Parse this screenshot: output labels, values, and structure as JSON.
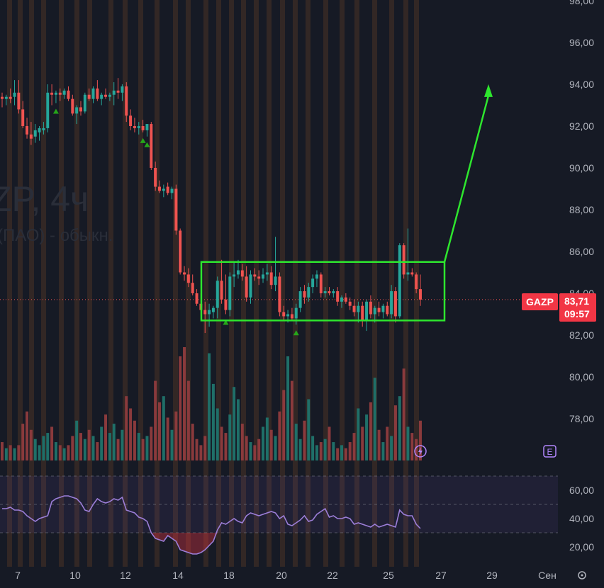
{
  "watermark": {
    "symbol_line": "ZP, 4ч",
    "name_line": "(ПАО) - обыкн."
  },
  "price_tag": {
    "symbol": "GAZP",
    "price": "83,71",
    "countdown": "09:57"
  },
  "icons": {
    "flash": "flash-icon",
    "earnings": "E",
    "settings": "gear-icon"
  },
  "colors": {
    "background": "#161a25",
    "up": "#26a69a",
    "down": "#ef5350",
    "session_band": "#4a3326",
    "annotation": "#2ee62e",
    "rsi_line": "#9c7ed8",
    "price_tag": "#f23645"
  },
  "price_axis": {
    "labels": [
      "98,00",
      "96,00",
      "94,00",
      "92,00",
      "90,00",
      "88,00",
      "86,00",
      "84,00",
      "82,00",
      "80,00",
      "78,00"
    ],
    "values": [
      98,
      96,
      94,
      92,
      90,
      88,
      86,
      84,
      82,
      80,
      78
    ]
  },
  "rsi_axis": {
    "labels": [
      "60,00",
      "40,00",
      "20,00"
    ],
    "values": [
      60,
      40,
      20
    ],
    "levels": [
      70,
      50,
      30
    ]
  },
  "time_axis": {
    "labels": [
      "7",
      "10",
      "12",
      "14",
      "18",
      "20",
      "22",
      "25",
      "27",
      "29",
      "Сен"
    ]
  },
  "chart_data": {
    "type": "candlestick",
    "symbol": "GAZP",
    "timeframe": "4ч",
    "ylim": [
      76.6,
      98.0
    ],
    "candles": [
      {
        "o": 93.4,
        "h": 93.6,
        "l": 92.9,
        "c": 93.3
      },
      {
        "o": 93.3,
        "h": 93.5,
        "l": 93.0,
        "c": 93.4
      },
      {
        "o": 93.4,
        "h": 93.8,
        "l": 93.1,
        "c": 93.3
      },
      {
        "o": 93.4,
        "h": 94.2,
        "l": 93.0,
        "c": 93.6
      },
      {
        "o": 93.6,
        "h": 94.2,
        "l": 92.6,
        "c": 92.8
      },
      {
        "o": 92.8,
        "h": 93.2,
        "l": 91.9,
        "c": 92.0
      },
      {
        "o": 92.0,
        "h": 92.4,
        "l": 91.4,
        "c": 91.6
      },
      {
        "o": 91.6,
        "h": 92.2,
        "l": 91.1,
        "c": 91.4
      },
      {
        "o": 91.5,
        "h": 92.1,
        "l": 91.2,
        "c": 91.8
      },
      {
        "o": 91.7,
        "h": 92.0,
        "l": 91.3,
        "c": 91.9
      },
      {
        "o": 91.8,
        "h": 92.2,
        "l": 91.6,
        "c": 91.9
      },
      {
        "o": 91.9,
        "h": 94.0,
        "l": 91.7,
        "c": 93.6
      },
      {
        "o": 93.6,
        "h": 94.0,
        "l": 93.0,
        "c": 93.5
      },
      {
        "o": 93.5,
        "h": 93.7,
        "l": 93.1,
        "c": 93.6
      },
      {
        "o": 93.6,
        "h": 93.8,
        "l": 93.2,
        "c": 93.5
      },
      {
        "o": 93.5,
        "h": 93.8,
        "l": 93.3,
        "c": 93.7
      },
      {
        "o": 93.7,
        "h": 93.9,
        "l": 93.2,
        "c": 93.3
      },
      {
        "o": 93.3,
        "h": 93.5,
        "l": 92.5,
        "c": 92.6
      },
      {
        "o": 92.6,
        "h": 93.0,
        "l": 92.1,
        "c": 92.9
      },
      {
        "o": 92.9,
        "h": 93.2,
        "l": 92.5,
        "c": 92.7
      },
      {
        "o": 92.7,
        "h": 93.6,
        "l": 92.6,
        "c": 93.5
      },
      {
        "o": 93.5,
        "h": 93.8,
        "l": 93.2,
        "c": 93.3
      },
      {
        "o": 93.3,
        "h": 93.9,
        "l": 93.1,
        "c": 93.8
      },
      {
        "o": 93.8,
        "h": 94.2,
        "l": 93.2,
        "c": 93.3
      },
      {
        "o": 93.3,
        "h": 93.6,
        "l": 93.0,
        "c": 93.5
      },
      {
        "o": 93.5,
        "h": 93.8,
        "l": 93.3,
        "c": 93.4
      },
      {
        "o": 93.4,
        "h": 93.6,
        "l": 93.2,
        "c": 93.5
      },
      {
        "o": 93.5,
        "h": 94.1,
        "l": 93.0,
        "c": 93.7
      },
      {
        "o": 93.7,
        "h": 94.3,
        "l": 93.3,
        "c": 93.6
      },
      {
        "o": 93.6,
        "h": 94.0,
        "l": 93.2,
        "c": 93.9
      },
      {
        "o": 93.9,
        "h": 94.1,
        "l": 92.2,
        "c": 92.5
      },
      {
        "o": 92.5,
        "h": 92.8,
        "l": 91.8,
        "c": 92.0
      },
      {
        "o": 92.0,
        "h": 92.4,
        "l": 91.7,
        "c": 91.9
      },
      {
        "o": 91.9,
        "h": 92.2,
        "l": 91.6,
        "c": 92.0
      },
      {
        "o": 92.0,
        "h": 92.3,
        "l": 91.7,
        "c": 91.8
      },
      {
        "o": 91.8,
        "h": 92.1,
        "l": 91.5,
        "c": 92.1
      },
      {
        "o": 92.1,
        "h": 92.2,
        "l": 89.9,
        "c": 90.0
      },
      {
        "o": 90.0,
        "h": 90.3,
        "l": 88.9,
        "c": 89.1
      },
      {
        "o": 89.1,
        "h": 89.4,
        "l": 88.8,
        "c": 88.9
      },
      {
        "o": 88.9,
        "h": 89.2,
        "l": 88.6,
        "c": 89.0
      },
      {
        "o": 89.1,
        "h": 89.3,
        "l": 88.7,
        "c": 88.8
      },
      {
        "o": 88.8,
        "h": 89.1,
        "l": 88.5,
        "c": 89.0
      },
      {
        "o": 89.0,
        "h": 89.2,
        "l": 86.8,
        "c": 87.0
      },
      {
        "o": 87.0,
        "h": 87.1,
        "l": 84.9,
        "c": 85.0
      },
      {
        "o": 85.0,
        "h": 85.3,
        "l": 84.6,
        "c": 84.9
      },
      {
        "o": 84.9,
        "h": 85.2,
        "l": 84.3,
        "c": 84.5
      },
      {
        "o": 84.5,
        "h": 84.9,
        "l": 83.9,
        "c": 84.0
      },
      {
        "o": 84.0,
        "h": 84.2,
        "l": 83.4,
        "c": 83.5
      },
      {
        "o": 83.5,
        "h": 84.0,
        "l": 82.9,
        "c": 83.2
      },
      {
        "o": 83.2,
        "h": 83.6,
        "l": 82.1,
        "c": 83.0
      },
      {
        "o": 83.0,
        "h": 83.5,
        "l": 82.4,
        "c": 83.2
      },
      {
        "o": 83.1,
        "h": 83.4,
        "l": 82.8,
        "c": 83.3
      },
      {
        "o": 83.3,
        "h": 84.8,
        "l": 82.8,
        "c": 84.6
      },
      {
        "o": 84.6,
        "h": 85.6,
        "l": 83.5,
        "c": 83.7
      },
      {
        "o": 83.7,
        "h": 84.9,
        "l": 83.0,
        "c": 83.2
      },
      {
        "o": 83.2,
        "h": 85.0,
        "l": 82.9,
        "c": 84.8
      },
      {
        "o": 84.8,
        "h": 85.5,
        "l": 84.3,
        "c": 84.9
      },
      {
        "o": 84.9,
        "h": 85.6,
        "l": 84.7,
        "c": 85.1
      },
      {
        "o": 85.1,
        "h": 85.4,
        "l": 84.6,
        "c": 84.8
      },
      {
        "o": 84.8,
        "h": 85.3,
        "l": 83.6,
        "c": 83.8
      },
      {
        "o": 83.8,
        "h": 85.1,
        "l": 83.5,
        "c": 84.9
      },
      {
        "o": 84.9,
        "h": 85.2,
        "l": 84.6,
        "c": 84.8
      },
      {
        "o": 84.8,
        "h": 85.1,
        "l": 84.4,
        "c": 84.7
      },
      {
        "o": 84.7,
        "h": 85.2,
        "l": 84.5,
        "c": 84.9
      },
      {
        "o": 84.9,
        "h": 85.4,
        "l": 84.6,
        "c": 85.0
      },
      {
        "o": 85.0,
        "h": 85.3,
        "l": 84.2,
        "c": 84.4
      },
      {
        "o": 84.4,
        "h": 86.7,
        "l": 84.1,
        "c": 84.8
      },
      {
        "o": 84.8,
        "h": 85.0,
        "l": 82.9,
        "c": 83.1
      },
      {
        "o": 83.1,
        "h": 83.4,
        "l": 82.7,
        "c": 82.9
      },
      {
        "o": 82.9,
        "h": 83.2,
        "l": 82.6,
        "c": 83.0
      },
      {
        "o": 83.0,
        "h": 83.3,
        "l": 82.7,
        "c": 82.8
      },
      {
        "o": 82.8,
        "h": 83.5,
        "l": 82.5,
        "c": 83.3
      },
      {
        "o": 83.3,
        "h": 84.3,
        "l": 83.1,
        "c": 84.1
      },
      {
        "o": 84.1,
        "h": 84.4,
        "l": 83.5,
        "c": 83.8
      },
      {
        "o": 83.8,
        "h": 84.5,
        "l": 83.6,
        "c": 84.3
      },
      {
        "o": 84.3,
        "h": 84.9,
        "l": 84.0,
        "c": 84.7
      },
      {
        "o": 84.7,
        "h": 85.1,
        "l": 84.3,
        "c": 84.9
      },
      {
        "o": 84.9,
        "h": 85.0,
        "l": 83.8,
        "c": 84.0
      },
      {
        "o": 84.0,
        "h": 84.3,
        "l": 83.8,
        "c": 84.1
      },
      {
        "o": 84.1,
        "h": 84.3,
        "l": 83.9,
        "c": 84.0
      },
      {
        "o": 84.0,
        "h": 84.2,
        "l": 83.8,
        "c": 84.1
      },
      {
        "o": 84.1,
        "h": 84.3,
        "l": 83.4,
        "c": 83.6
      },
      {
        "o": 83.6,
        "h": 83.9,
        "l": 83.3,
        "c": 83.8
      },
      {
        "o": 83.8,
        "h": 84.0,
        "l": 83.5,
        "c": 83.6
      },
      {
        "o": 83.6,
        "h": 83.8,
        "l": 83.2,
        "c": 83.4
      },
      {
        "o": 83.4,
        "h": 83.7,
        "l": 82.9,
        "c": 83.1
      },
      {
        "o": 83.1,
        "h": 83.6,
        "l": 82.6,
        "c": 83.4
      },
      {
        "o": 83.4,
        "h": 83.6,
        "l": 82.4,
        "c": 82.7
      },
      {
        "o": 82.7,
        "h": 83.7,
        "l": 82.2,
        "c": 83.6
      },
      {
        "o": 83.6,
        "h": 83.9,
        "l": 82.8,
        "c": 83.0
      },
      {
        "o": 83.0,
        "h": 83.4,
        "l": 82.6,
        "c": 83.3
      },
      {
        "o": 83.3,
        "h": 83.6,
        "l": 82.9,
        "c": 83.1
      },
      {
        "o": 83.1,
        "h": 83.5,
        "l": 82.8,
        "c": 83.4
      },
      {
        "o": 83.4,
        "h": 83.6,
        "l": 82.9,
        "c": 83.0
      },
      {
        "o": 83.0,
        "h": 84.4,
        "l": 82.8,
        "c": 84.1
      },
      {
        "o": 84.1,
        "h": 84.3,
        "l": 82.6,
        "c": 82.9
      },
      {
        "o": 82.9,
        "h": 86.4,
        "l": 82.8,
        "c": 86.3
      },
      {
        "o": 86.3,
        "h": 86.4,
        "l": 84.7,
        "c": 84.9
      },
      {
        "o": 84.9,
        "h": 87.1,
        "l": 84.6,
        "c": 85.0
      },
      {
        "o": 85.0,
        "h": 85.2,
        "l": 84.8,
        "c": 84.9
      },
      {
        "o": 84.9,
        "h": 85.0,
        "l": 84.0,
        "c": 84.2
      },
      {
        "o": 84.2,
        "h": 84.9,
        "l": 83.4,
        "c": 83.7
      }
    ],
    "volume": [
      6,
      4,
      5,
      4,
      5,
      12,
      16,
      10,
      7,
      5,
      8,
      9,
      11,
      6,
      5,
      4,
      5,
      8,
      13,
      9,
      7,
      10,
      8,
      6,
      11,
      15,
      9,
      12,
      7,
      10,
      21,
      17,
      13,
      9,
      7,
      8,
      11,
      26,
      19,
      21,
      14,
      10,
      16,
      34,
      37,
      26,
      12,
      7,
      5,
      8,
      35,
      25,
      17,
      11,
      9,
      15,
      24,
      20,
      12,
      8,
      6,
      5,
      7,
      11,
      14,
      10,
      8,
      16,
      23,
      34,
      26,
      12,
      7,
      13,
      20,
      8,
      5,
      6,
      7,
      11,
      6,
      4,
      5,
      4,
      6,
      9,
      17,
      11,
      15,
      19,
      27,
      10,
      6,
      11,
      8,
      18,
      21,
      30,
      11,
      9,
      7,
      13
    ],
    "buy_markers": [
      13,
      34,
      35,
      54,
      71
    ],
    "rsi": [
      47,
      47,
      48,
      46,
      46,
      45,
      42,
      40,
      38,
      40,
      41,
      42,
      52,
      54,
      55,
      56,
      56,
      55,
      54,
      51,
      46,
      45,
      50,
      54,
      52,
      51,
      52,
      54,
      53,
      55,
      46,
      45,
      44,
      41,
      40,
      38,
      30,
      26,
      25,
      24,
      28,
      26,
      24,
      18,
      17,
      16,
      15,
      15,
      16,
      18,
      21,
      24,
      32,
      37,
      36,
      38,
      40,
      38,
      37,
      42,
      44,
      43,
      42,
      43,
      44,
      45,
      44,
      40,
      42,
      36,
      35,
      37,
      39,
      42,
      38,
      39,
      43,
      45,
      47,
      41,
      42,
      40,
      40,
      41,
      40,
      36,
      37,
      36,
      35,
      34,
      36,
      34,
      35,
      36,
      35,
      34,
      46,
      43,
      42,
      42,
      36,
      33
    ],
    "annotation": {
      "type": "rectangle_with_arrow",
      "box": {
        "price_top": 85.5,
        "price_bottom": 82.7
      },
      "arrow_target_price": 93.8
    }
  }
}
